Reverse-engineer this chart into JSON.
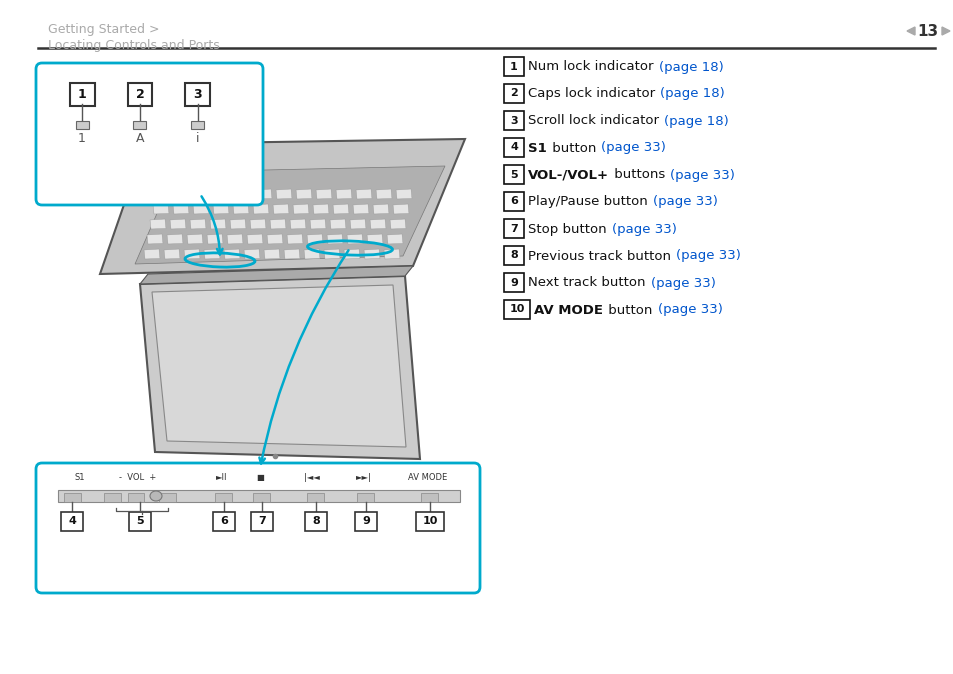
{
  "bg_color": "#ffffff",
  "header_text_line1": "Getting Started >",
  "header_text_line2": "Locating Controls and Ports",
  "header_color": "#aaaaaa",
  "page_number": "13",
  "page_num_color": "#333333",
  "divider_color": "#333333",
  "list_items": [
    {
      "num": "1",
      "text_black": "Num lock indicator ",
      "text_bold": "",
      "text_blue": "(page 18)"
    },
    {
      "num": "2",
      "text_black": "Caps lock indicator ",
      "text_bold": "",
      "text_blue": "(page 18)"
    },
    {
      "num": "3",
      "text_black": "Scroll lock indicator ",
      "text_bold": "",
      "text_blue": "(page 18)"
    },
    {
      "num": "4",
      "text_black": " button ",
      "text_bold": "S1",
      "text_blue": "(page 33)"
    },
    {
      "num": "5",
      "text_black": " buttons ",
      "text_bold": "VOL-/VOL+",
      "text_blue": "(page 33)"
    },
    {
      "num": "6",
      "text_black": "Play/Pause button ",
      "text_bold": "",
      "text_blue": "(page 33)"
    },
    {
      "num": "7",
      "text_black": "Stop button ",
      "text_bold": "",
      "text_blue": "(page 33)"
    },
    {
      "num": "8",
      "text_black": "Previous track button ",
      "text_bold": "",
      "text_blue": "(page 33)"
    },
    {
      "num": "9",
      "text_black": "Next track button ",
      "text_bold": "",
      "text_blue": "(page 33)"
    },
    {
      "num": "10",
      "text_black": " button ",
      "text_bold": "AV MODE",
      "text_blue": "(page 33)"
    }
  ],
  "blue_color": "#0055cc",
  "black_color": "#111111",
  "box_color": "#00aacc",
  "bar_labels": [
    "S1",
    "-  VOL  +",
    "►II",
    "■",
    "|◄◄",
    "►►|",
    "AV MODE"
  ],
  "bar_x_pos": [
    80,
    138,
    222,
    260,
    312,
    364,
    428
  ]
}
